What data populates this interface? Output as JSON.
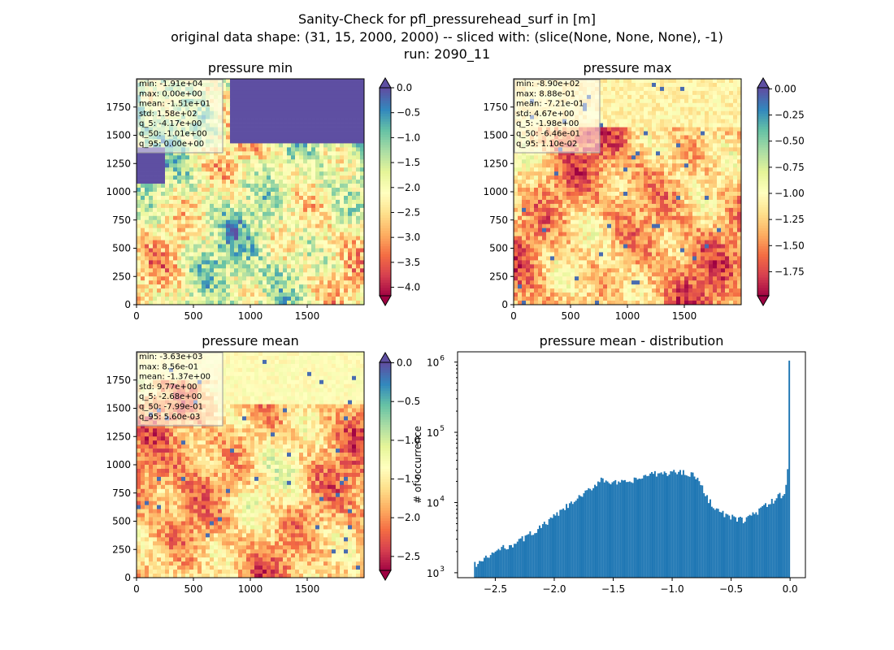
{
  "figure": {
    "title_lines": [
      "Sanity-Check for pfl_pressurehead_surf in [m]",
      "original data shape: (31, 15, 2000, 2000) -- sliced with: (slice(None, None, None), -1)",
      "run: 2090_11"
    ]
  },
  "colors": {
    "spectral": [
      "#9e0142",
      "#d53e4f",
      "#f46d43",
      "#fdae61",
      "#fee08b",
      "#ffffbf",
      "#e6f598",
      "#abdda4",
      "#66c2a5",
      "#3288bd",
      "#5e4fa2"
    ],
    "hist_bar": "#1f77b4",
    "stats_box_bg": "#ffffff"
  },
  "chart_data": [
    {
      "type": "heatmap",
      "title": "pressure min",
      "colormap": "Spectral",
      "xlim": [
        0,
        2000
      ],
      "ylim": [
        0,
        2000
      ],
      "x_ticks": [
        "0",
        "500",
        "1000",
        "1500"
      ],
      "y_ticks": [
        "0",
        "250",
        "500",
        "750",
        "1000",
        "1250",
        "1500",
        "1750"
      ],
      "colorbar": {
        "range": [
          -4.17,
          0.0
        ],
        "ticks": [
          "0.0",
          "−0.5",
          "−1.0",
          "−1.5",
          "−2.0",
          "−2.5",
          "−3.0",
          "−3.5",
          "−4.0"
        ],
        "extend": "both",
        "over_triangle": "#5e4fa2",
        "under_triangle": "#9e0142"
      },
      "stats": [
        "min: -1.91e+04",
        "max: 0.00e+00",
        "mean: -1.51e+01",
        "std: 1.58e+02",
        "q_5: -4.17e+00",
        "q_50: -1.01e+00",
        "q_95: 0.00e+00"
      ]
    },
    {
      "type": "heatmap",
      "title": "pressure max",
      "colormap": "Spectral",
      "xlim": [
        0,
        2000
      ],
      "ylim": [
        0,
        2000
      ],
      "x_ticks": [
        "0",
        "500",
        "1000",
        "1500"
      ],
      "y_ticks": [
        "0",
        "250",
        "500",
        "750",
        "1000",
        "1250",
        "1500",
        "1750"
      ],
      "colorbar": {
        "range": [
          -1.98,
          0.011
        ],
        "ticks": [
          "0.00",
          "−0.25",
          "−0.50",
          "−0.75",
          "−1.00",
          "−1.25",
          "−1.50",
          "−1.75"
        ],
        "extend": "both",
        "over_triangle": "#5e4fa2",
        "under_triangle": "#9e0142"
      },
      "stats": [
        "min: -8.90e+02",
        "max: 8.88e-01",
        "mean: -7.21e-01",
        "std: 4.67e+00",
        "q_5: -1.98e+00",
        "q_50: -6.46e-01",
        "q_95: 1.10e-02"
      ]
    },
    {
      "type": "heatmap",
      "title": "pressure mean",
      "colormap": "Spectral",
      "xlim": [
        0,
        2000
      ],
      "ylim": [
        0,
        2000
      ],
      "x_ticks": [
        "0",
        "500",
        "1000",
        "1500"
      ],
      "y_ticks": [
        "0",
        "250",
        "500",
        "750",
        "1000",
        "1250",
        "1500",
        "1750"
      ],
      "colorbar": {
        "range": [
          -2.68,
          0.0056
        ],
        "ticks": [
          "0.0",
          "−0.5",
          "−1.0",
          "−1.5",
          "−2.0",
          "−2.5"
        ],
        "extend": "both",
        "over_triangle": "#5e4fa2",
        "under_triangle": "#9e0142"
      },
      "stats": [
        "min: -3.63e+03",
        "max: 8.56e-01",
        "mean: -1.37e+00",
        "std: 9.77e+00",
        "q_5: -2.68e+00",
        "q_50: -7.99e-01",
        "q_95: 5.60e-03"
      ]
    },
    {
      "type": "bar",
      "title": "pressure mean - distribution",
      "xlabel": "",
      "ylabel": "# of occurrence",
      "yscale": "log",
      "xlim": [
        -2.82,
        0.13
      ],
      "ylim": [
        850,
        1400000
      ],
      "x_ticks": [
        "−2.5",
        "−2.0",
        "−1.5",
        "−1.0",
        "−0.5",
        "0.0"
      ],
      "y_ticks": [
        "10^3",
        "10^4",
        "10^5",
        "10^6"
      ],
      "bin_range": [
        -2.68,
        0.0
      ],
      "bin_width": 0.0134,
      "profile_x": [
        -2.68,
        -2.6,
        -2.5,
        -2.3,
        -2.1,
        -1.9,
        -1.7,
        -1.6,
        -1.5,
        -1.4,
        -1.3,
        -1.2,
        -1.1,
        -1.0,
        -0.9,
        -0.85,
        -0.8,
        -0.7,
        -0.6,
        -0.5,
        -0.4,
        -0.3,
        -0.2,
        -0.1,
        -0.04,
        -0.02,
        0.0
      ],
      "profile_y": [
        1300,
        1500,
        2000,
        2800,
        4600,
        8500,
        15000,
        22000,
        19000,
        19000,
        21000,
        25000,
        25500,
        27000,
        27000,
        26000,
        24000,
        11500,
        7300,
        6100,
        5600,
        7000,
        9000,
        12000,
        14000,
        30000,
        1050000
      ]
    }
  ]
}
